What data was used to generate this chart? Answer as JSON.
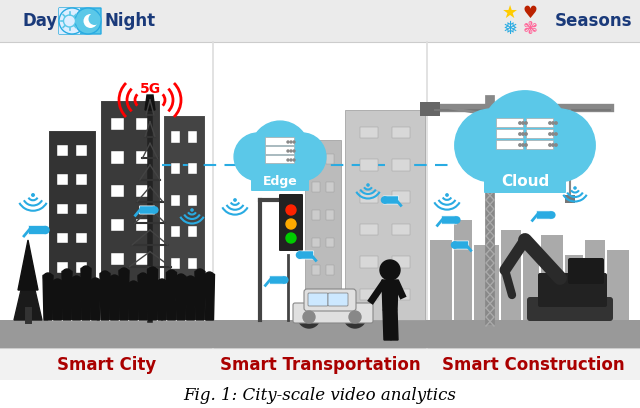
{
  "title": "Fig. 1: City-scale video analytics",
  "fig_width": 6.4,
  "fig_height": 4.08,
  "background_color": "#ffffff",
  "header_bg_color": "#ebebeb",
  "day_label": "Day",
  "night_label": "Night",
  "seasons_label": "Seasons",
  "smart_city_label": "Smart City",
  "smart_transport_label": "Smart Transportation",
  "smart_construction_label": "Smart Construction",
  "label_color": "#aa0000",
  "day_night_text_color": "#1a3a7a",
  "cloud_color": "#5bc8e8",
  "edge_label": "Edge",
  "cloud_label": "Cloud",
  "wifi_color": "#29abe2",
  "dashed_line_color": "#29abe2",
  "5g_color": "#ff0000",
  "tower_color": "#333333",
  "ground_color": "#888888",
  "building_color_dark": "#3a3a3a",
  "building_color_mid": "#888888",
  "building_color_light": "#c8c8c8",
  "crowd_color": "#111111",
  "camera_color": "#29abe2",
  "traffic_light_colors": [
    "#ff2200",
    "#ffaa00",
    "#00cc00"
  ],
  "car_color": "#e8e8e8",
  "crane_color": "#888888",
  "ground_strip_color": "#999999",
  "footer_color": "#f0f0f0",
  "section_div_color": "#dddddd"
}
